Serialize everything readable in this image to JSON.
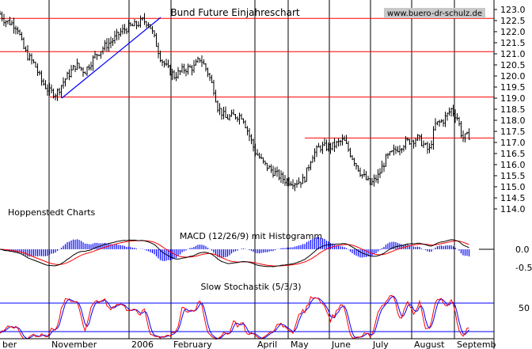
{
  "chart_data": {
    "type": "bar",
    "title": "Bund Future Einjahreschart",
    "watermark": "www.buero-dr-schulz.de",
    "source_label": "Hoppenstedt Charts",
    "price_axis": {
      "range": [
        114.0,
        123.0
      ],
      "ticks": [
        "123.0",
        "122.5",
        "122.0",
        "121.5",
        "121.0",
        "120.5",
        "120.0",
        "119.5",
        "119.0",
        "118.5",
        "118.0",
        "117.5",
        "117.0",
        "116.5",
        "116.0",
        "115.5",
        "115.0",
        "114.5",
        "114.0"
      ]
    },
    "x_labels": [
      "ber",
      "November",
      "2006",
      "February",
      "April",
      "May",
      "June",
      "July",
      "August",
      "Septemb"
    ],
    "horizontal_levels": [
      122.6,
      121.1,
      119.05,
      117.2
    ],
    "trendline": {
      "from": [
        "November",
        119.0
      ],
      "to": [
        "2006",
        122.5
      ]
    },
    "price_anchors": [
      [
        0,
        122.8
      ],
      [
        6,
        122.5
      ],
      [
        14,
        122.4
      ],
      [
        22,
        122.2
      ],
      [
        29,
        121.3
      ],
      [
        35,
        120.9
      ],
      [
        44,
        120.5
      ],
      [
        52,
        119.8
      ],
      [
        62,
        119.3
      ],
      [
        71,
        119.2
      ],
      [
        81,
        119.8
      ],
      [
        96,
        120.5
      ],
      [
        107,
        120.2
      ],
      [
        120,
        120.9
      ],
      [
        131,
        121.3
      ],
      [
        142,
        121.6
      ],
      [
        153,
        122.0
      ],
      [
        162,
        122.2
      ],
      [
        172,
        122.3
      ],
      [
        180,
        122.5
      ],
      [
        188,
        122.4
      ],
      [
        196,
        121.6
      ],
      [
        203,
        120.8
      ],
      [
        210,
        120.4
      ],
      [
        220,
        120.0
      ],
      [
        232,
        120.3
      ],
      [
        245,
        120.4
      ],
      [
        253,
        120.8
      ],
      [
        262,
        120.2
      ],
      [
        270,
        119.4
      ],
      [
        275,
        118.6
      ],
      [
        285,
        118.1
      ],
      [
        296,
        118.2
      ],
      [
        306,
        118.2
      ],
      [
        314,
        117.4
      ],
      [
        322,
        116.6
      ],
      [
        334,
        116.0
      ],
      [
        348,
        115.6
      ],
      [
        360,
        115.3
      ],
      [
        372,
        115.2
      ],
      [
        384,
        115.3
      ],
      [
        394,
        116.4
      ],
      [
        404,
        116.8
      ],
      [
        418,
        116.8
      ],
      [
        434,
        117.1
      ],
      [
        444,
        116.4
      ],
      [
        456,
        115.6
      ],
      [
        468,
        115.1
      ],
      [
        478,
        115.5
      ],
      [
        488,
        116.3
      ],
      [
        498,
        116.6
      ],
      [
        512,
        117.0
      ],
      [
        528,
        117.2
      ],
      [
        542,
        116.6
      ],
      [
        550,
        117.8
      ],
      [
        560,
        118.0
      ],
      [
        570,
        118.5
      ],
      [
        578,
        118.1
      ],
      [
        584,
        117.2
      ],
      [
        592,
        117.3
      ]
    ],
    "macd": {
      "label": "MACD (12/26/9) mit Histogramm",
      "ticks": [
        "0.0",
        "-0.5"
      ]
    },
    "stochastic": {
      "label": "Slow Stochastik (5/3/3)",
      "ticks": [
        "50"
      ],
      "upper_band": 80,
      "lower_band": 20
    },
    "colors": {
      "bars": "#000000",
      "level_lines": "#ff0000",
      "trendline": "#0000ff",
      "histogram": "#0000ff",
      "signal_line": "#ff0000",
      "macd_line": "#000000",
      "stoch_k": "#ff0000",
      "stoch_d": "#0000ff",
      "band_lines": "#0000ff",
      "vertical_grid": "#000000",
      "background": "#ffffff"
    }
  }
}
